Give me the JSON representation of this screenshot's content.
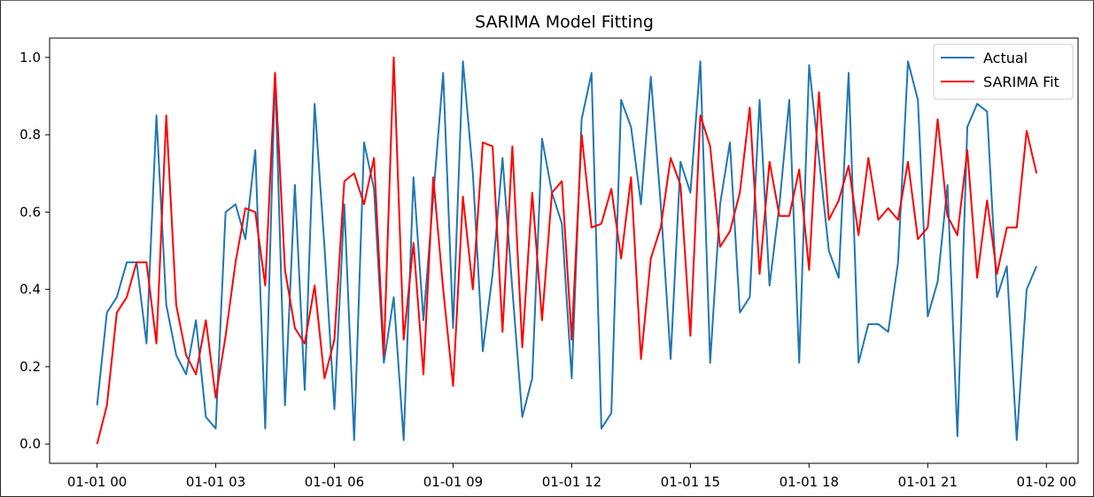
{
  "chart_data": {
    "type": "line",
    "title": "SARIMA Model Fitting",
    "xlabel": "",
    "ylabel": "",
    "x_start": "2024-01-01 00:00",
    "x_step_minutes": 15,
    "xlim_hours": [
      -1.2,
      24.8
    ],
    "ylim": [
      -0.05,
      1.05
    ],
    "x_ticks": [
      {
        "hour": 0,
        "label": "01-01 00"
      },
      {
        "hour": 3,
        "label": "01-01 03"
      },
      {
        "hour": 6,
        "label": "01-01 06"
      },
      {
        "hour": 9,
        "label": "01-01 09"
      },
      {
        "hour": 12,
        "label": "01-01 12"
      },
      {
        "hour": 15,
        "label": "01-01 15"
      },
      {
        "hour": 18,
        "label": "01-01 18"
      },
      {
        "hour": 21,
        "label": "01-01 21"
      },
      {
        "hour": 24,
        "label": "01-02 00"
      }
    ],
    "y_ticks": [
      {
        "value": 0.0,
        "label": "0.0"
      },
      {
        "value": 0.2,
        "label": "0.2"
      },
      {
        "value": 0.4,
        "label": "0.4"
      },
      {
        "value": 0.6,
        "label": "0.6"
      },
      {
        "value": 0.8,
        "label": "0.8"
      },
      {
        "value": 1.0,
        "label": "1.0"
      }
    ],
    "legend_position": "top-right",
    "grid": false,
    "series": [
      {
        "name": "Actual",
        "color": "#1f77b4",
        "values": [
          0.1,
          0.34,
          0.38,
          0.47,
          0.47,
          0.26,
          0.85,
          0.36,
          0.23,
          0.18,
          0.32,
          0.07,
          0.04,
          0.6,
          0.62,
          0.53,
          0.76,
          0.04,
          0.96,
          0.1,
          0.67,
          0.14,
          0.88,
          0.51,
          0.09,
          0.62,
          0.01,
          0.78,
          0.66,
          0.21,
          0.38,
          0.01,
          0.69,
          0.32,
          0.64,
          0.96,
          0.3,
          0.99,
          0.7,
          0.24,
          0.44,
          0.74,
          0.4,
          0.07,
          0.17,
          0.79,
          0.65,
          0.57,
          0.17,
          0.84,
          0.96,
          0.04,
          0.08,
          0.89,
          0.82,
          0.62,
          0.95,
          0.62,
          0.22,
          0.73,
          0.65,
          0.99,
          0.21,
          0.62,
          0.78,
          0.34,
          0.38,
          0.89,
          0.41,
          0.62,
          0.89,
          0.21,
          0.98,
          0.74,
          0.5,
          0.43,
          0.96,
          0.21,
          0.31,
          0.31,
          0.29,
          0.47,
          0.99,
          0.89,
          0.33,
          0.42,
          0.67,
          0.02,
          0.82,
          0.88,
          0.86,
          0.38,
          0.46,
          0.01,
          0.4,
          0.46
        ]
      },
      {
        "name": "SARIMA Fit",
        "color": "#ff0000",
        "values": [
          0.0,
          0.1,
          0.34,
          0.38,
          0.47,
          0.47,
          0.26,
          0.85,
          0.36,
          0.23,
          0.18,
          0.32,
          0.12,
          0.28,
          0.47,
          0.61,
          0.6,
          0.41,
          0.96,
          0.45,
          0.3,
          0.26,
          0.41,
          0.17,
          0.27,
          0.68,
          0.7,
          0.62,
          0.74,
          0.23,
          1.0,
          0.27,
          0.52,
          0.18,
          0.69,
          0.4,
          0.15,
          0.64,
          0.4,
          0.78,
          0.77,
          0.29,
          0.77,
          0.25,
          0.65,
          0.32,
          0.65,
          0.68,
          0.27,
          0.8,
          0.56,
          0.57,
          0.66,
          0.48,
          0.69,
          0.22,
          0.48,
          0.56,
          0.74,
          0.67,
          0.28,
          0.85,
          0.77,
          0.51,
          0.55,
          0.65,
          0.87,
          0.44,
          0.73,
          0.59,
          0.59,
          0.71,
          0.45,
          0.91,
          0.58,
          0.63,
          0.72,
          0.54,
          0.74,
          0.58,
          0.61,
          0.58,
          0.73,
          0.53,
          0.56,
          0.84,
          0.59,
          0.54,
          0.76,
          0.43,
          0.63,
          0.44,
          0.56,
          0.56,
          0.81,
          0.7
        ]
      }
    ]
  }
}
